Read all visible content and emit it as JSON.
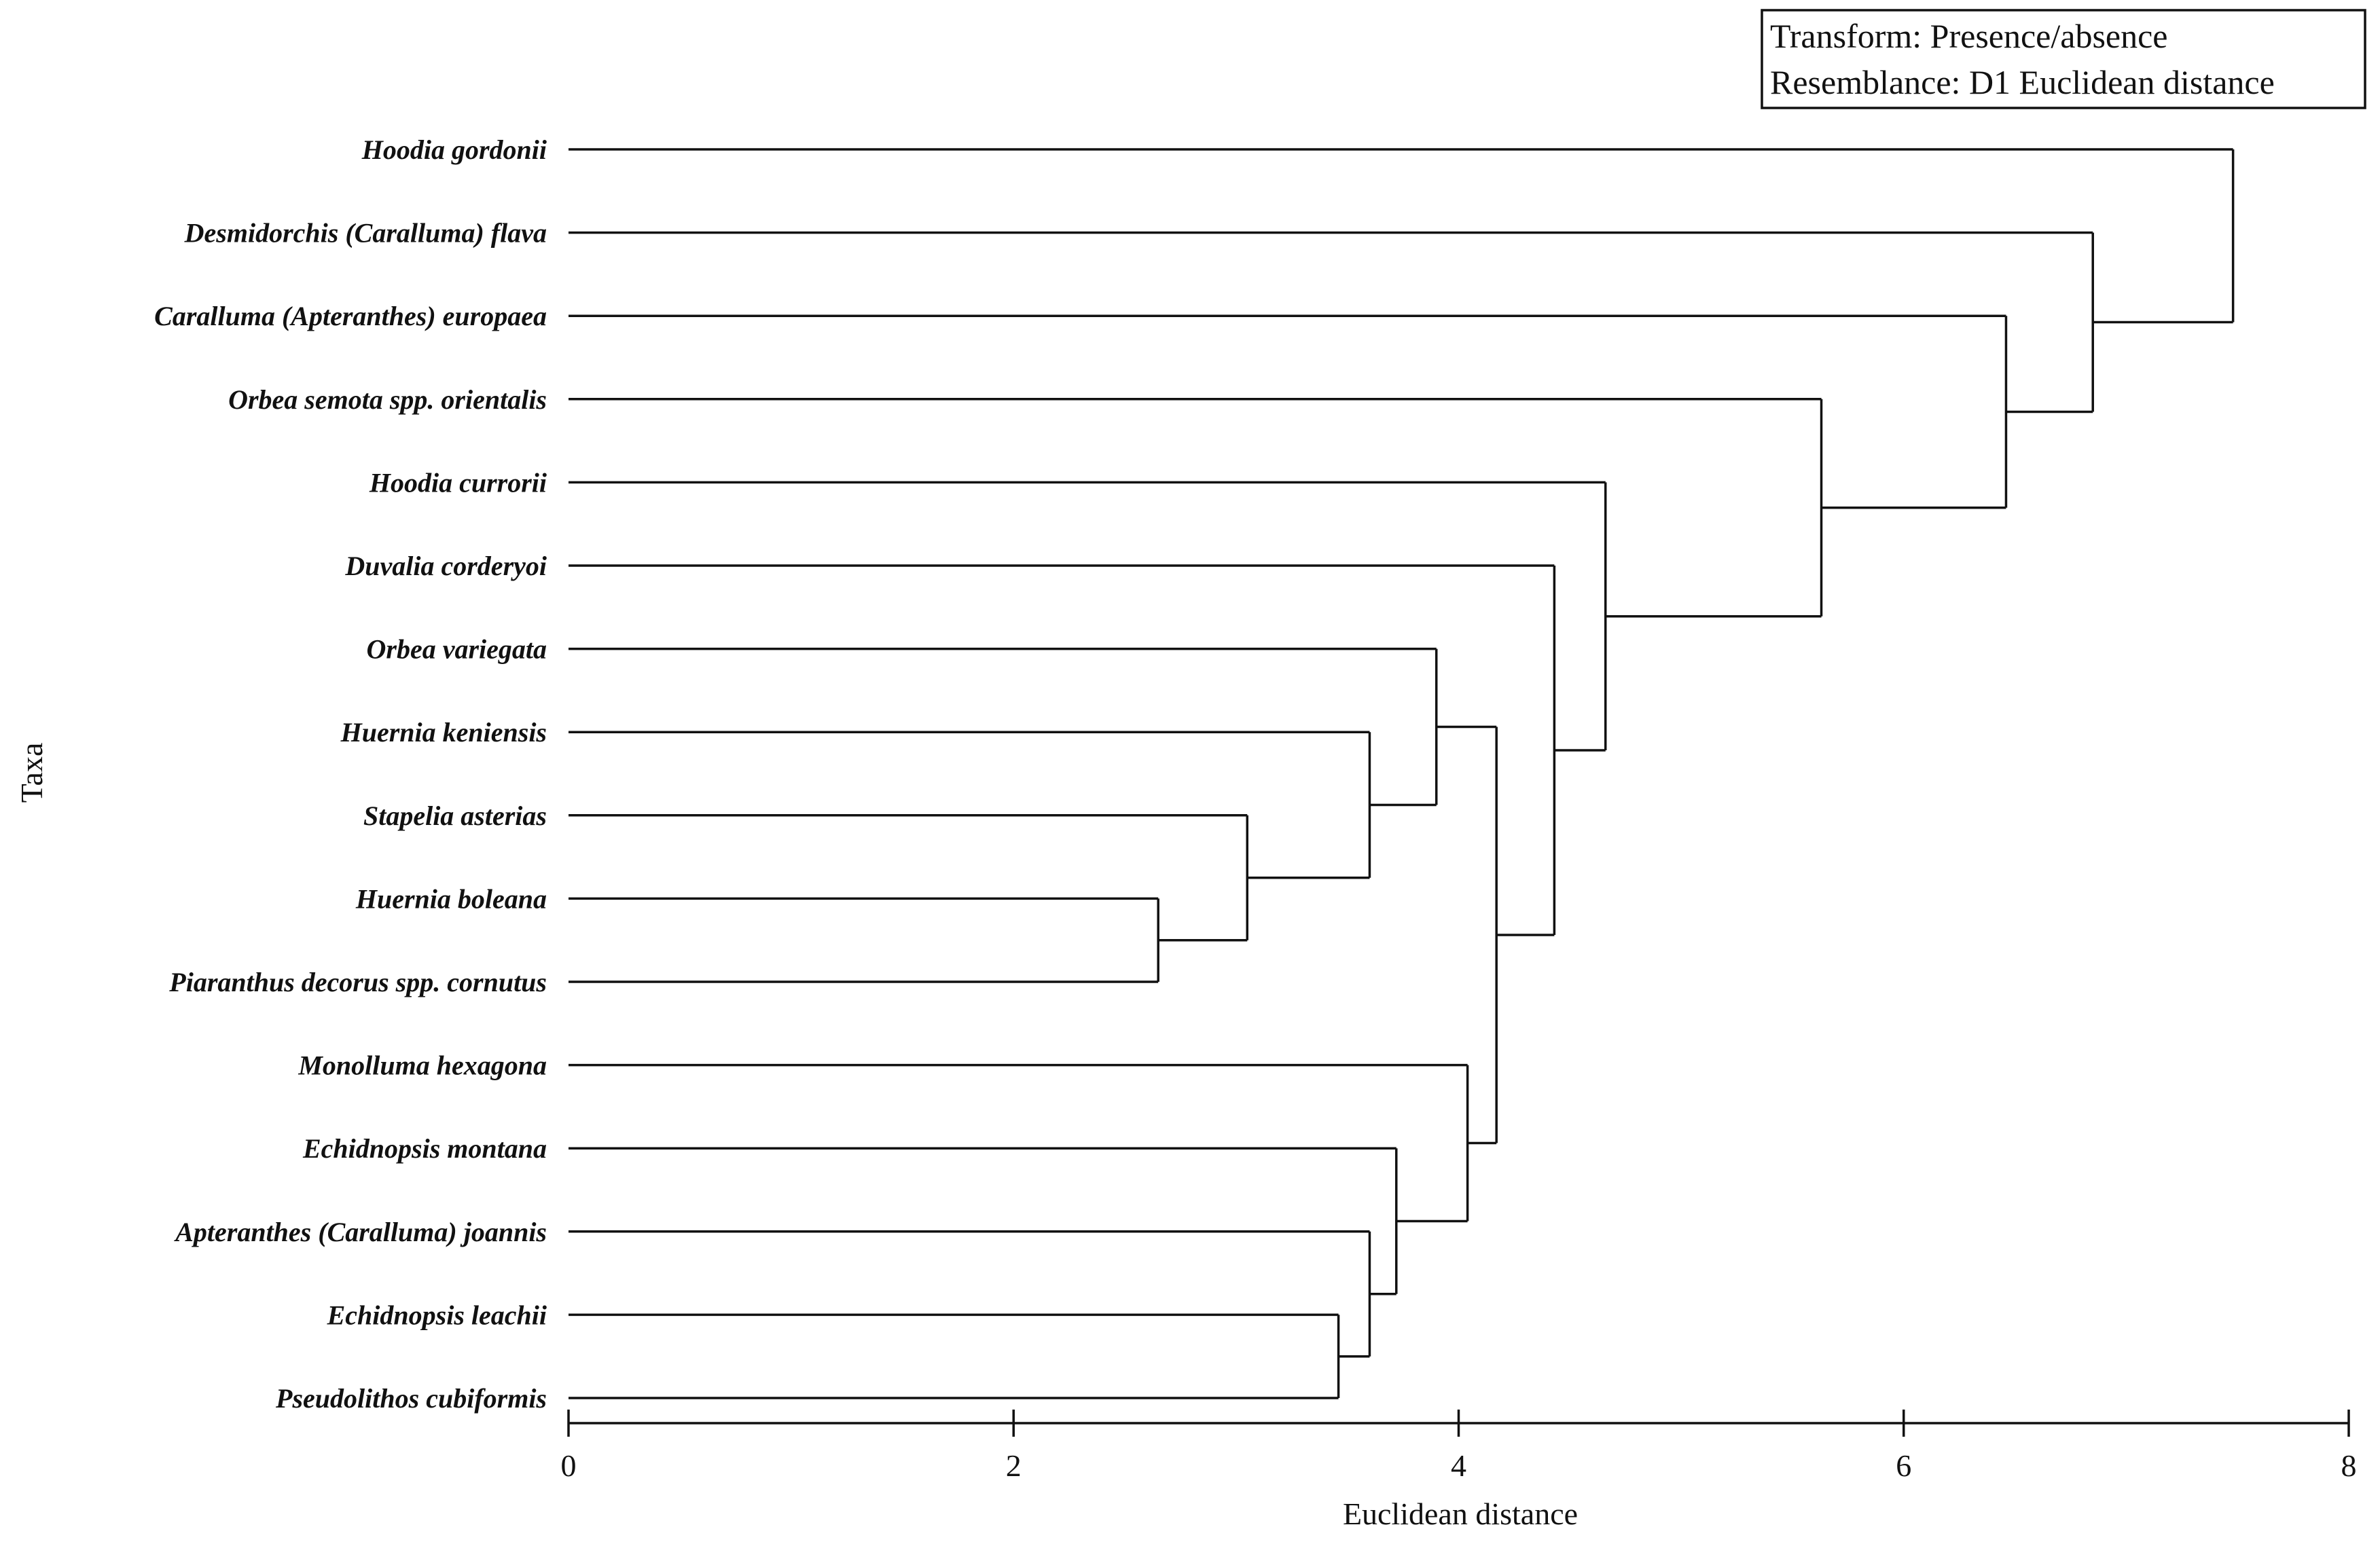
{
  "chart_data": {
    "type": "dendrogram",
    "title": "",
    "xlabel": "Euclidean distance",
    "ylabel": "Taxa",
    "xlim": [
      0,
      8
    ],
    "xticks": [
      0,
      2,
      4,
      6,
      8
    ],
    "legend": {
      "position": "top-right",
      "lines": [
        "Transform: Presence/absence",
        "Resemblance: D1 Euclidean distance"
      ]
    },
    "leaves": [
      "Hoodia gordonii",
      "Desmidorchis (Caralluma) flava",
      "Caralluma (Apteranthes) europaea",
      "Orbea semota spp. orientalis",
      "Hoodia currorii",
      "Duvalia corderyoi",
      "Orbea variegata",
      "Huernia keniensis",
      "Stapelia asterias",
      "Huernia boleana",
      "Piaranthus decorus spp. cornutus",
      "Monolluma hexagona",
      "Echidnopsis montana",
      "Apteranthes (Caralluma) joannis",
      "Echidnopsis leachii",
      "Pseudolithos cubiformis"
    ],
    "merges": [
      {
        "a": "L9",
        "b": "L10",
        "height": 2.65
      },
      {
        "a": "L8",
        "b": "N0",
        "height": 3.05
      },
      {
        "a": "L7",
        "b": "N1",
        "height": 3.6
      },
      {
        "a": "L6",
        "b": "N2",
        "height": 3.9
      },
      {
        "a": "L14",
        "b": "L15",
        "height": 3.46
      },
      {
        "a": "L13",
        "b": "N4",
        "height": 3.6
      },
      {
        "a": "L12",
        "b": "N5",
        "height": 3.72
      },
      {
        "a": "L11",
        "b": "N6",
        "height": 4.04
      },
      {
        "a": "N3",
        "b": "N7",
        "height": 4.17
      },
      {
        "a": "L5",
        "b": "N8",
        "height": 4.43
      },
      {
        "a": "L4",
        "b": "N9",
        "height": 4.66
      },
      {
        "a": "L3",
        "b": "N10",
        "height": 5.63
      },
      {
        "a": "L2",
        "b": "N11",
        "height": 6.46
      },
      {
        "a": "L1",
        "b": "N12",
        "height": 6.85
      },
      {
        "a": "L0",
        "b": "N13",
        "height": 7.48
      }
    ]
  }
}
